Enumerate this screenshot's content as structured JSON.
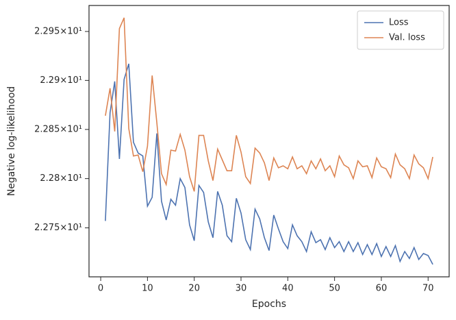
{
  "chart_data": {
    "type": "line",
    "xlabel": "Epochs",
    "ylabel": "Negative log-likelihood",
    "x": [
      1,
      2,
      3,
      4,
      5,
      6,
      7,
      8,
      9,
      10,
      11,
      12,
      13,
      14,
      15,
      16,
      17,
      18,
      19,
      20,
      21,
      22,
      23,
      24,
      25,
      26,
      27,
      28,
      29,
      30,
      31,
      32,
      33,
      34,
      35,
      36,
      37,
      38,
      39,
      40,
      41,
      42,
      43,
      44,
      45,
      46,
      47,
      48,
      49,
      50,
      51,
      52,
      53,
      54,
      55,
      56,
      57,
      58,
      59,
      60,
      61,
      62,
      63,
      64,
      65,
      66,
      67,
      68,
      69,
      70,
      71
    ],
    "series": [
      {
        "name": "Loss",
        "color": "#4c72b0",
        "values": [
          22.757,
          22.867,
          22.899,
          22.82,
          22.901,
          22.917,
          22.837,
          22.826,
          22.823,
          22.772,
          22.781,
          22.846,
          22.777,
          22.758,
          22.779,
          22.773,
          22.8,
          22.791,
          22.753,
          22.737,
          22.793,
          22.786,
          22.756,
          22.74,
          22.787,
          22.773,
          22.742,
          22.736,
          22.78,
          22.765,
          22.738,
          22.728,
          22.769,
          22.759,
          22.74,
          22.727,
          22.763,
          22.749,
          22.736,
          22.729,
          22.753,
          22.742,
          22.736,
          22.726,
          22.746,
          22.735,
          22.738,
          22.728,
          22.74,
          22.73,
          22.736,
          22.726,
          22.736,
          22.726,
          22.735,
          22.723,
          22.733,
          22.723,
          22.734,
          22.721,
          22.731,
          22.721,
          22.732,
          22.716,
          22.726,
          22.719,
          22.73,
          22.718,
          22.724,
          22.722,
          22.713
        ]
      },
      {
        "name": "Val. loss",
        "color": "#dd8452",
        "values": [
          22.864,
          22.892,
          22.848,
          22.953,
          22.964,
          22.851,
          22.823,
          22.824,
          22.807,
          22.833,
          22.905,
          22.857,
          22.805,
          22.794,
          22.829,
          22.828,
          22.845,
          22.829,
          22.802,
          22.787,
          22.844,
          22.844,
          22.818,
          22.798,
          22.83,
          22.819,
          22.808,
          22.808,
          22.844,
          22.827,
          22.802,
          22.795,
          22.831,
          22.826,
          22.816,
          22.798,
          22.821,
          22.811,
          22.813,
          22.81,
          22.822,
          22.81,
          22.813,
          22.805,
          22.818,
          22.81,
          22.82,
          22.808,
          22.813,
          22.802,
          22.823,
          22.814,
          22.811,
          22.8,
          22.818,
          22.812,
          22.813,
          22.801,
          22.821,
          22.812,
          22.81,
          22.801,
          22.825,
          22.814,
          22.81,
          22.8,
          22.824,
          22.815,
          22.811,
          22.8,
          22.822
        ]
      }
    ],
    "xlim": [
      -2.5,
      74.5
    ],
    "xticks": [
      0,
      10,
      20,
      30,
      40,
      50,
      60,
      70
    ],
    "ylim": [
      22.7004,
      22.9766
    ],
    "ylog": true,
    "yticks": [
      {
        "value": 22.75,
        "label": "2.275×10¹"
      },
      {
        "value": 22.8,
        "label": "2.28×10¹"
      },
      {
        "value": 22.85,
        "label": "2.285×10¹"
      },
      {
        "value": 22.9,
        "label": "2.29×10¹"
      },
      {
        "value": 22.95,
        "label": "2.295×10¹"
      }
    ],
    "legend": "upper right"
  }
}
